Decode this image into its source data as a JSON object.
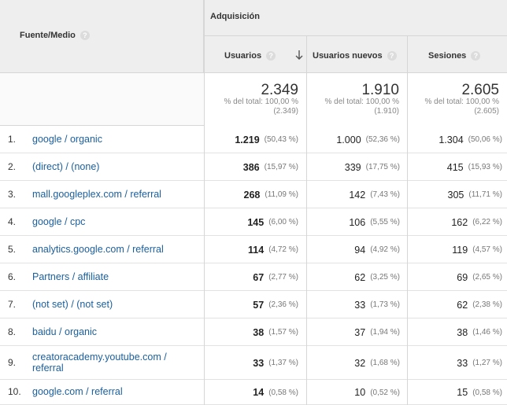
{
  "header": {
    "dimension_label": "Fuente/Medio",
    "group_label": "Adquisición",
    "columns": [
      "Usuarios",
      "Usuarios nuevos",
      "Sesiones"
    ],
    "help_glyph": "?"
  },
  "totals": [
    {
      "value": "2.349",
      "pct_line": "% del total: 100,00 %",
      "abs_line": "(2.349)"
    },
    {
      "value": "1.910",
      "pct_line": "% del total: 100,00 %",
      "abs_line": "(1.910)"
    },
    {
      "value": "2.605",
      "pct_line": "% del total: 100,00 %",
      "abs_line": "(2.605)"
    }
  ],
  "rows": [
    {
      "num": "1.",
      "src": "google / organic",
      "u": "1.219",
      "up": "(50,43 %)",
      "n": "1.000",
      "np": "(52,36 %)",
      "s": "1.304",
      "sp": "(50,06 %)"
    },
    {
      "num": "2.",
      "src": "(direct) / (none)",
      "u": "386",
      "up": "(15,97 %)",
      "n": "339",
      "np": "(17,75 %)",
      "s": "415",
      "sp": "(15,93 %)"
    },
    {
      "num": "3.",
      "src": "mall.googleplex.com / referral",
      "u": "268",
      "up": "(11,09 %)",
      "n": "142",
      "np": "(7,43 %)",
      "s": "305",
      "sp": "(11,71 %)"
    },
    {
      "num": "4.",
      "src": "google / cpc",
      "u": "145",
      "up": "(6,00 %)",
      "n": "106",
      "np": "(5,55 %)",
      "s": "162",
      "sp": "(6,22 %)"
    },
    {
      "num": "5.",
      "src": "analytics.google.com / referral",
      "u": "114",
      "up": "(4,72 %)",
      "n": "94",
      "np": "(4,92 %)",
      "s": "119",
      "sp": "(4,57 %)"
    },
    {
      "num": "6.",
      "src": "Partners / affiliate",
      "u": "67",
      "up": "(2,77 %)",
      "n": "62",
      "np": "(3,25 %)",
      "s": "69",
      "sp": "(2,65 %)"
    },
    {
      "num": "7.",
      "src": "(not set) / (not set)",
      "u": "57",
      "up": "(2,36 %)",
      "n": "33",
      "np": "(1,73 %)",
      "s": "62",
      "sp": "(2,38 %)"
    },
    {
      "num": "8.",
      "src": "baidu / organic",
      "u": "38",
      "up": "(1,57 %)",
      "n": "37",
      "np": "(1,94 %)",
      "s": "38",
      "sp": "(1,46 %)"
    },
    {
      "num": "9.",
      "src": "creatoracademy.youtube.com / referral",
      "u": "33",
      "up": "(1,37 %)",
      "n": "32",
      "np": "(1,68 %)",
      "s": "33",
      "sp": "(1,27 %)"
    },
    {
      "num": "10.",
      "src": "google.com / referral",
      "u": "14",
      "up": "(0,58 %)",
      "n": "10",
      "np": "(0,52 %)",
      "s": "15",
      "sp": "(0,58 %)"
    }
  ],
  "colors": {
    "link": "#1a5f9e",
    "header_bg": "#eeeeee",
    "border": "#d6d6d6"
  },
  "icons": {
    "sort": "arrow-down-icon",
    "help": "help-circle-icon"
  }
}
